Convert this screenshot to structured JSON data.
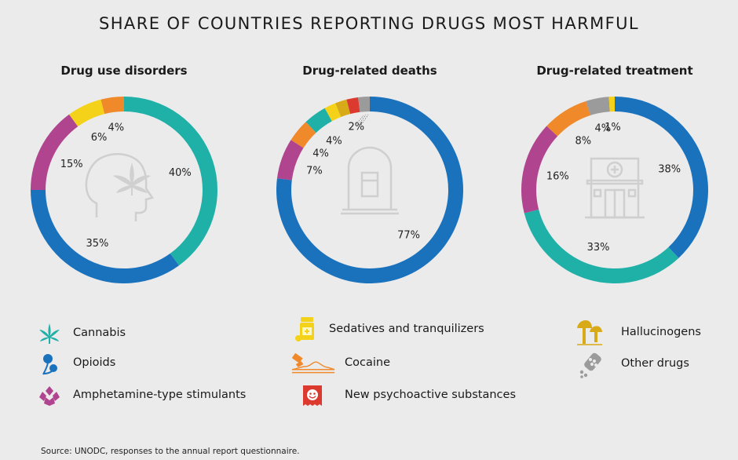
{
  "title": "SHARE OF COUNTRIES REPORTING DRUGS MOST HARMFUL",
  "colors": {
    "cannabis": "#1fb0a8",
    "opioids": "#1a72bd",
    "amphetamine": "#b0448f",
    "sedatives": "#f5d21a",
    "cocaine": "#f0892a",
    "nps": "#dd3a2f",
    "hallucinogens": "#d9aa18",
    "other": "#9b9b9b"
  },
  "legend": [
    {
      "label": "Cannabis",
      "icon": "cannabis-leaf-icon",
      "key": "cannabis"
    },
    {
      "label": "Opioids",
      "icon": "poppy-icon",
      "key": "opioids"
    },
    {
      "label": "Amphetamine-type stimulants",
      "icon": "crystal-icon",
      "key": "amphetamine"
    },
    {
      "label": "Sedatives and tranquilizers",
      "icon": "pill-bottle-icon",
      "key": "sedatives"
    },
    {
      "label": "Cocaine",
      "icon": "cocaine-line-icon",
      "key": "cocaine"
    },
    {
      "label": "New psychoactive substances",
      "icon": "nps-packet-icon",
      "key": "nps"
    },
    {
      "label": "Hallucinogens",
      "icon": "mushroom-icon",
      "key": "hallucinogens"
    },
    {
      "label": "Other drugs",
      "icon": "pill-blister-icon",
      "key": "other"
    }
  ],
  "source": "Source: UNODC, responses to the annual report questionnaire.",
  "chart_data": [
    {
      "type": "pie",
      "title": "Drug use disorders",
      "center_icon": "head-cannabis-icon",
      "series": [
        {
          "name": "Cannabis",
          "value": 40,
          "label": "40%"
        },
        {
          "name": "Opioids",
          "value": 35,
          "label": "35%"
        },
        {
          "name": "Amphetamine-type stimulants",
          "value": 15,
          "label": "15%"
        },
        {
          "name": "Sedatives and tranquilizers",
          "value": 6,
          "label": "6%"
        },
        {
          "name": "Cocaine",
          "value": 4,
          "label": "4%"
        }
      ]
    },
    {
      "type": "pie",
      "title": "Drug-related deaths",
      "center_icon": "gravestone-icon",
      "series": [
        {
          "name": "Opioids",
          "value": 77,
          "label": "77%"
        },
        {
          "name": "Amphetamine-type stimulants",
          "value": 7,
          "label": "7%"
        },
        {
          "name": "Cocaine",
          "value": 4,
          "label": "4%"
        },
        {
          "name": "Cannabis",
          "value": 4,
          "label": "4%"
        },
        {
          "name": "Sedatives and tranquilizers",
          "value": 2,
          "label": ""
        },
        {
          "name": "Hallucinogens",
          "value": 2,
          "label": ""
        },
        {
          "name": "New psychoactive substances",
          "value": 2,
          "label": "2%"
        },
        {
          "name": "Other drugs",
          "value": 2,
          "label": ""
        }
      ]
    },
    {
      "type": "pie",
      "title": "Drug-related treatment",
      "center_icon": "hospital-icon",
      "series": [
        {
          "name": "Opioids",
          "value": 38,
          "label": "38%"
        },
        {
          "name": "Cannabis",
          "value": 33,
          "label": "33%"
        },
        {
          "name": "Amphetamine-type stimulants",
          "value": 16,
          "label": "16%"
        },
        {
          "name": "Cocaine",
          "value": 8,
          "label": "8%"
        },
        {
          "name": "Other drugs",
          "value": 4,
          "label": "4%"
        },
        {
          "name": "Sedatives and tranquilizers",
          "value": 1,
          "label": "1%"
        }
      ]
    }
  ]
}
